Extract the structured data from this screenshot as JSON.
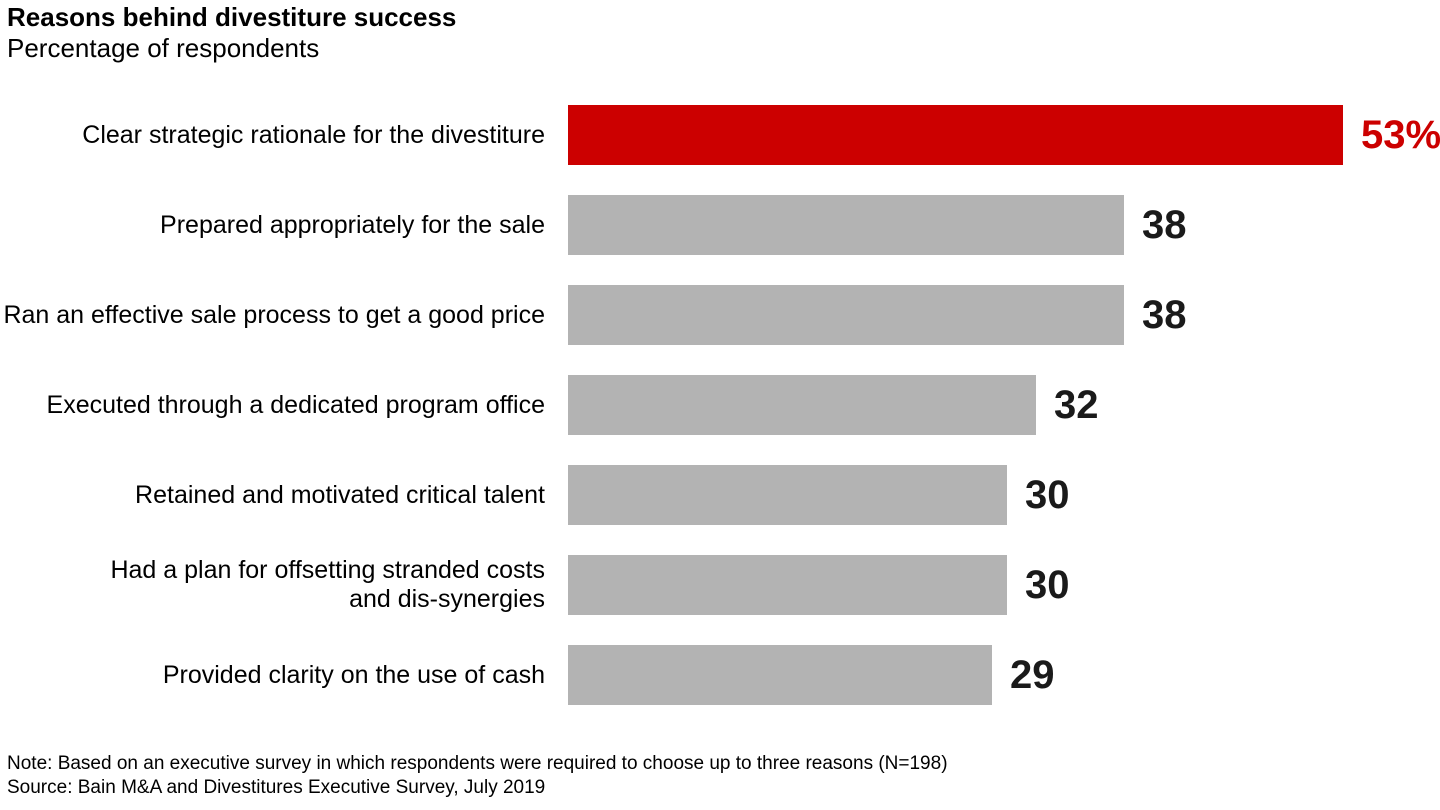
{
  "header": {
    "title": "Reasons behind divestiture success",
    "subtitle": "Percentage of respondents"
  },
  "footer": {
    "note": "Note: Based on an executive survey in which respondents were required to choose up to three reasons (N=198)",
    "source": "Source: Bain M&A and Divestitures Executive Survey, July 2019"
  },
  "colors": {
    "highlight_bar": "#cc0000",
    "highlight_value_text": "#cc0000",
    "default_bar": "#b3b3b3",
    "value_text": "#1a1a1a",
    "label_text": "#000000"
  },
  "chart_data": {
    "type": "bar",
    "orientation": "horizontal",
    "title": "Reasons behind divestiture success",
    "subtitle": "Percentage of respondents",
    "categories": [
      "Clear strategic rationale for the divestiture",
      "Prepared appropriately for the sale",
      "Ran an effective sale process to get a good price",
      "Executed through a dedicated program office",
      "Retained and motivated critical talent",
      "Had a plan for offsetting stranded costs\nand dis-synergies",
      "Provided clarity on the use of cash"
    ],
    "values": [
      53,
      38,
      38,
      32,
      30,
      30,
      29
    ],
    "value_labels": [
      "53%",
      "38",
      "38",
      "32",
      "30",
      "30",
      "29"
    ],
    "highlight_index": 0,
    "unit": "percent",
    "xlim": [
      0,
      53
    ],
    "grid": false,
    "axis_shown": false,
    "value_label_position": "right-of-bar"
  }
}
